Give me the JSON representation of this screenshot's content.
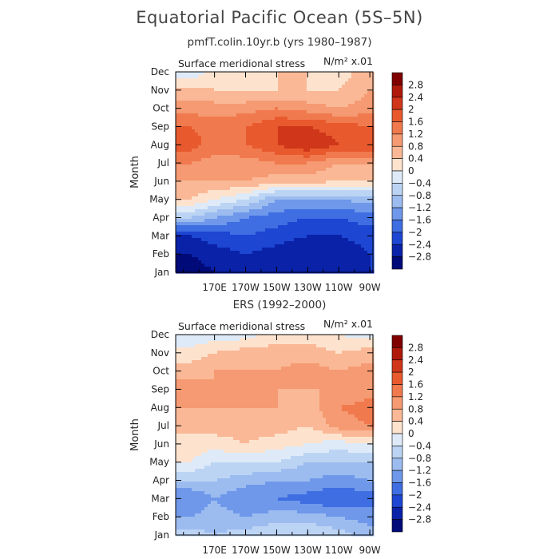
{
  "title": "Equatorial Pacific Ocean (5S–5N)",
  "panels": [
    {
      "title": "pmfT.colin.10yr.b (yrs 1980–1987)"
    },
    {
      "title": "ERS (1992–2000)"
    }
  ],
  "colorbar": {
    "labels": [
      "2.8",
      "2.4",
      "2",
      "1.6",
      "1.2",
      "0.8",
      "0.4",
      "0",
      "−0.4",
      "−0.8",
      "−1.2",
      "−1.6",
      "−2",
      "−2.4",
      "−2.8"
    ],
    "colors": [
      "#800000",
      "#b01a0a",
      "#d0361a",
      "#e85a2e",
      "#f07a4e",
      "#f59a72",
      "#fab896",
      "#fde3ce",
      "#deeaf8",
      "#bcd4f4",
      "#9cbcf0",
      "#6f98ea",
      "#3f6ee2",
      "#1d46d2",
      "#0a22a8",
      "#000a78"
    ]
  },
  "chart_data": [
    {
      "type": "heatmap",
      "title": "pmfT.colin.10yr.b (yrs 1980–1987)",
      "variable": "Surface meridional stress",
      "units": "N/m² x.01",
      "ylabel": "Month",
      "x_ticks": [
        "170E",
        "170W",
        "150W",
        "130W",
        "110W",
        "90W"
      ],
      "y_ticks": [
        "Jan",
        "Feb",
        "Mar",
        "Apr",
        "May",
        "Jun",
        "Jul",
        "Aug",
        "Sep",
        "Oct",
        "Nov",
        "Dec"
      ],
      "x_lon_east": [
        155,
        170,
        190,
        210,
        230,
        250,
        270
      ],
      "z": [
        [
          -3.0,
          -2.8,
          -2.6,
          -2.8,
          -2.8,
          -2.6,
          -2.4
        ],
        [
          -2.8,
          -2.6,
          -2.4,
          -2.6,
          -2.8,
          -2.8,
          -2.4
        ],
        [
          -2.4,
          -2.2,
          -2.0,
          -2.2,
          -2.4,
          -2.4,
          -2.2
        ],
        [
          -0.8,
          -1.2,
          -1.6,
          -1.8,
          -2.0,
          -2.0,
          -1.8
        ],
        [
          0.4,
          0.0,
          -0.4,
          -1.2,
          -1.2,
          -1.2,
          -1.0
        ],
        [
          0.8,
          0.8,
          0.8,
          0.6,
          0.6,
          0.4,
          0.4
        ],
        [
          1.2,
          1.0,
          1.0,
          1.2,
          1.2,
          0.8,
          0.8
        ],
        [
          1.8,
          1.4,
          1.6,
          2.0,
          2.4,
          2.0,
          2.0
        ],
        [
          1.6,
          1.4,
          1.6,
          2.0,
          2.0,
          1.8,
          1.6
        ],
        [
          1.0,
          1.0,
          1.0,
          1.2,
          1.0,
          0.8,
          1.0
        ],
        [
          0.6,
          0.4,
          0.4,
          0.4,
          0.4,
          0.4,
          0.8
        ],
        [
          -0.4,
          0.2,
          0.2,
          0.4,
          0.4,
          0.2,
          0.6
        ]
      ]
    },
    {
      "type": "heatmap",
      "title": "ERS (1992–2000)",
      "variable": "Surface meridional stress",
      "units": "N/m² x.01",
      "ylabel": "Month",
      "x_ticks": [
        "170E",
        "170W",
        "150W",
        "130W",
        "110W",
        "90W"
      ],
      "y_ticks": [
        "Jan",
        "Feb",
        "Mar",
        "Apr",
        "May",
        "Jun",
        "Jul",
        "Aug",
        "Sep",
        "Oct",
        "Nov",
        "Dec"
      ],
      "x_lon_east": [
        155,
        170,
        190,
        210,
        230,
        250,
        270
      ],
      "z": [
        [
          -0.6,
          -0.8,
          -0.6,
          -0.4,
          -0.4,
          -0.6,
          -1.0
        ],
        [
          -1.2,
          -1.0,
          -1.2,
          -1.0,
          -1.0,
          -1.2,
          -1.4
        ],
        [
          -1.6,
          -1.2,
          -1.6,
          -1.6,
          -1.8,
          -2.0,
          -1.8
        ],
        [
          -0.8,
          -0.8,
          -1.0,
          -1.2,
          -1.2,
          -1.4,
          -1.2
        ],
        [
          0.0,
          -0.4,
          -0.4,
          -0.4,
          -0.8,
          -0.8,
          -0.8
        ],
        [
          0.2,
          0.2,
          0.4,
          0.2,
          0.0,
          -0.2,
          0.0
        ],
        [
          0.6,
          0.6,
          0.6,
          0.6,
          0.4,
          1.0,
          1.2
        ],
        [
          0.8,
          0.8,
          0.8,
          0.8,
          0.6,
          1.2,
          1.4
        ],
        [
          1.0,
          0.8,
          0.8,
          0.8,
          0.8,
          0.8,
          1.0
        ],
        [
          0.6,
          0.8,
          0.8,
          0.8,
          1.0,
          0.8,
          1.0
        ],
        [
          0.2,
          0.4,
          0.6,
          0.6,
          0.6,
          0.4,
          0.6
        ],
        [
          -0.4,
          -0.2,
          -0.2,
          0.2,
          0.2,
          0.0,
          -0.2
        ]
      ]
    }
  ]
}
